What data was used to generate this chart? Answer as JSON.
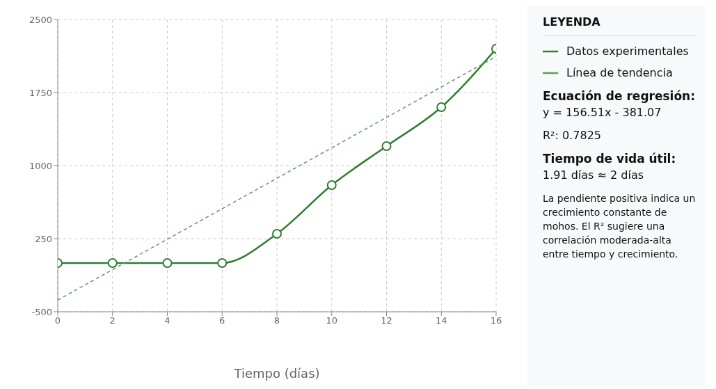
{
  "chart_data": {
    "type": "line",
    "xlabel": "Tiempo (días)",
    "legend_title": "LEYENDA",
    "legend": "right",
    "grid": true,
    "marker": "circle",
    "line_style": "solid",
    "x": [
      0,
      2,
      4,
      6,
      8,
      10,
      12,
      14,
      16
    ],
    "series": [
      {
        "name": "Datos experimentales",
        "color": "#2e7d32",
        "values": [
          0,
          0,
          0,
          0,
          300,
          800,
          1200,
          1600,
          2200
        ]
      },
      {
        "name": "Línea de tendencia",
        "color": "#5a9e5a",
        "type": "line",
        "marker": "none",
        "line_style": "dashed",
        "x": [
          0,
          16
        ],
        "values": [
          -380,
          2120
        ]
      }
    ],
    "xlim": [
      0,
      16
    ],
    "xticks": [
      0,
      2,
      4,
      6,
      8,
      10,
      12,
      14,
      16
    ],
    "ylim": [
      -500,
      2500
    ],
    "yticks": [
      -500,
      250,
      1000,
      1750,
      2500
    ],
    "annotations": [
      "Ecuación de regresión:",
      "y = 156.51x - 381.07",
      "R²: 0.7825",
      "Tiempo de vida útil:",
      "1.91 días ≈ 2 días",
      "La pendiente positiva indica un crecimiento constante de mohos. El R² sugiere una correlación moderada-alta entre tiempo y crecimiento."
    ]
  }
}
